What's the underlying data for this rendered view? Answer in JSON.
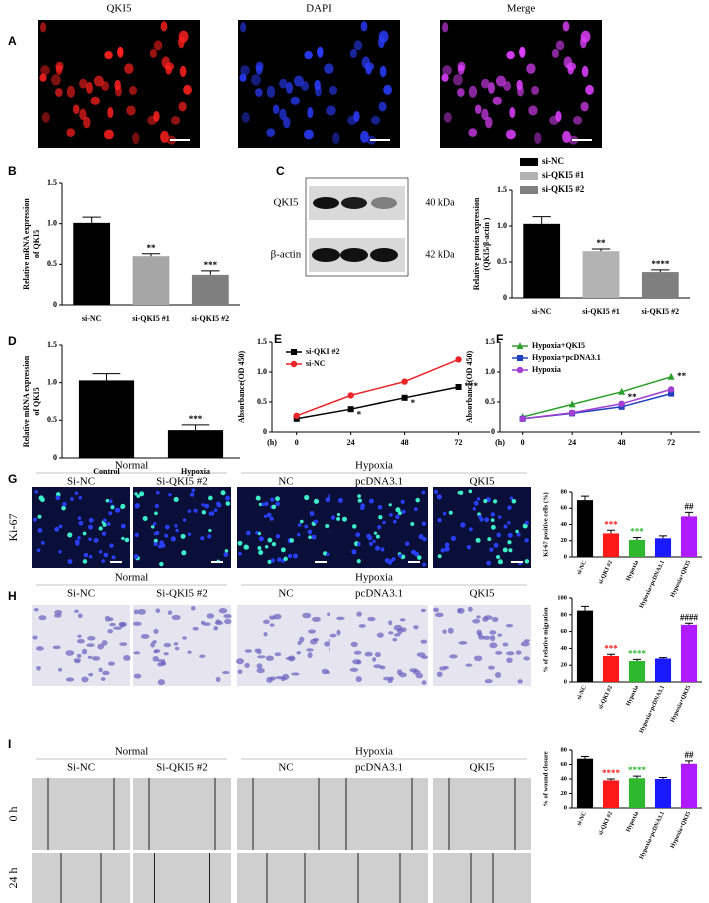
{
  "figure": {
    "panel_labels": [
      "A",
      "B",
      "C",
      "D",
      "E",
      "F",
      "G",
      "H",
      "I"
    ],
    "a_titles": [
      "QKI5",
      "DAPI",
      "Merge"
    ],
    "blot": {
      "bands": [
        "QKI5",
        "β-actin"
      ],
      "sizes": [
        "40 kDa",
        "42 kDa"
      ]
    },
    "g": {
      "groups": [
        "Normal",
        "Hypoxia"
      ],
      "columns": [
        "Si-NC",
        "Si-QKI5 #2",
        "NC",
        "pcDNA3.1",
        "QKI5"
      ],
      "rows": [
        "Ki-67"
      ]
    },
    "h": {
      "groups": [
        "Normal",
        "Hypoxia"
      ],
      "columns": [
        "Si-NC",
        "Si-QKI5 #2",
        "NC",
        "pcDNA3.1",
        "QKI5"
      ]
    },
    "i": {
      "groups": [
        "Normal",
        "Hypoxia"
      ],
      "columns": [
        "Si-NC",
        "Si-QKI5 #2",
        "NC",
        "pcDNA3.1",
        "QKI5"
      ],
      "rows": [
        "0 h",
        "24 h"
      ]
    }
  },
  "chart_data": [
    {
      "type": "bar",
      "ylabel": [
        "Relative mRNA expression",
        "of QKI5"
      ],
      "categories": [
        "si-NC",
        "si-QKI5 #1",
        "si-QKI5 #2"
      ],
      "values": [
        1.01,
        0.6,
        0.37
      ],
      "errors": [
        0.07,
        0.03,
        0.05
      ],
      "annotations": [
        null,
        "**",
        "***"
      ],
      "colors": [
        "#000000",
        "#a6a6a6",
        "#7f7f7f"
      ],
      "ylim": [
        0,
        1.5
      ],
      "yticks": [
        0,
        0.5,
        {
          "value": 1,
          "label": "1.0"
        },
        1.5
      ],
      "legend": false
    },
    {
      "type": "bar",
      "ylabel": [
        "Relative protein expression",
        "(QKI5/β-actin )"
      ],
      "categories": [
        "si-NC",
        "si-QKI5 #1",
        "si-QKI5 #2"
      ],
      "values": [
        1.03,
        0.65,
        0.36
      ],
      "errors": [
        0.1,
        0.03,
        0.03
      ],
      "annotations": [
        null,
        "**",
        "****"
      ],
      "colors": [
        "#000000",
        "#b3b3b3",
        "#7f7f7f"
      ],
      "ylim": [
        0,
        1.5
      ],
      "yticks": [
        0,
        0.5,
        {
          "value": 1,
          "label": "1.0"
        },
        1.5
      ],
      "legend": true
    },
    {
      "type": "bar",
      "ylabel": [
        "Relative mRNA expression",
        "of QKI5"
      ],
      "categories": [
        "Control",
        "Hypoxia"
      ],
      "values": [
        1.03,
        0.37
      ],
      "errors": [
        0.09,
        0.07
      ],
      "annotations": [
        null,
        "***"
      ],
      "colors": [
        "#000000",
        "#000000"
      ],
      "ylim": [
        0,
        1.5
      ],
      "yticks": [
        0,
        0.5,
        {
          "value": 1,
          "label": "1.0"
        },
        1.5
      ],
      "legend": false
    },
    {
      "type": "line",
      "ylabel": [
        "Absorbance(OD 450)"
      ],
      "xlabel": "(h)",
      "x": [
        0,
        24,
        48,
        72
      ],
      "xlim": [
        -11,
        86
      ],
      "xticks": [
        0,
        24,
        48,
        72
      ],
      "ylim": [
        0,
        1.5
      ],
      "yticks": [
        0,
        0.5,
        {
          "value": 1,
          "label": "1.0"
        },
        1.5
      ],
      "legend": true,
      "series": [
        {
          "name": "si-QKI #2",
          "color": "#000000",
          "marker": "square",
          "values": [
            0.22,
            0.38,
            0.57,
            0.75
          ],
          "annotations": [
            null,
            "*",
            "*",
            "***"
          ]
        },
        {
          "name": "si-NC",
          "color": "#e8262a",
          "marker": "circle",
          "values": [
            0.27,
            0.61,
            0.84,
            1.21
          ],
          "annotations": [
            null,
            null,
            null,
            null
          ]
        }
      ]
    },
    {
      "type": "line",
      "ylabel": [
        "Absorbance(OD 450)"
      ],
      "xlabel": "(h)",
      "x": [
        0,
        24,
        48,
        72
      ],
      "xlim": [
        -11,
        86
      ],
      "xticks": [
        0,
        24,
        48,
        72
      ],
      "ylim": [
        0,
        1.5
      ],
      "yticks": [
        0,
        0.5,
        {
          "value": 1,
          "label": "1.0"
        },
        1.5
      ],
      "legend": true,
      "series": [
        {
          "name": "Hypoxia+QKI5",
          "color": "#2ca02c",
          "marker": "triangle",
          "values": [
            0.25,
            0.46,
            0.67,
            0.92
          ],
          "annotations": [
            null,
            null,
            "**",
            "**"
          ]
        },
        {
          "name": "Hypoxia+pcDNA3.1",
          "color": "#1f3fbf",
          "marker": "square",
          "values": [
            0.22,
            0.31,
            0.42,
            0.64
          ],
          "annotations": [
            null,
            null,
            null,
            null
          ]
        },
        {
          "name": "Hypoxia",
          "color": "#a23fd1",
          "marker": "circle",
          "values": [
            0.22,
            0.32,
            0.47,
            0.71
          ],
          "annotations": [
            null,
            null,
            null,
            null
          ]
        }
      ]
    },
    {
      "type": "bar",
      "ylabel": [
        "Ki-67 positive cells (%)"
      ],
      "categories": [
        "si-NC",
        "si-QKI #2",
        "Hypoxia",
        "Hypoxia+pcDNA3.1",
        "Hypoxia+QKI5"
      ],
      "values": [
        70,
        29,
        21,
        23,
        50
      ],
      "errors": [
        5,
        4,
        3,
        3,
        5
      ],
      "annotations": [
        null,
        "***",
        "***",
        null,
        "##"
      ],
      "colors": [
        "#000000",
        "#ff1a1a",
        "#2db82d",
        "#1a1aff",
        "#b01aff"
      ],
      "ylim": [
        0,
        80
      ],
      "yticks": [
        0,
        20,
        40,
        60,
        80
      ],
      "legend": false
    },
    {
      "type": "bar",
      "ylabel": [
        "% of relative migration"
      ],
      "categories": [
        "si-NC",
        "si-QKI #2",
        "Hypoxia",
        "Hypoxia+pcDNA3.1",
        "Hypoxia+QKI5"
      ],
      "values": [
        85,
        31,
        25,
        28,
        68
      ],
      "errors": [
        5,
        2,
        2,
        1,
        2
      ],
      "annotations": [
        null,
        "***",
        "****",
        null,
        "####"
      ],
      "colors": [
        "#000000",
        "#ff1a1a",
        "#2db82d",
        "#1a1aff",
        "#b01aff"
      ],
      "ylim": [
        0,
        100
      ],
      "yticks": [
        0,
        20,
        40,
        60,
        80,
        100
      ],
      "legend": false
    },
    {
      "type": "bar",
      "ylabel": [
        "% of wound closure"
      ],
      "categories": [
        "si-NC",
        "si-QKI #2",
        "Hypoxia",
        "Hypoxia+pcDNA3.1",
        "Hypoxia+QKI5"
      ],
      "values": [
        68,
        38,
        41,
        40,
        61
      ],
      "errors": [
        3,
        2,
        3,
        2,
        4
      ],
      "annotations": [
        null,
        "****",
        "****",
        null,
        "##"
      ],
      "colors": [
        "#000000",
        "#ff1a1a",
        "#2db82d",
        "#1a1aff",
        "#b01aff"
      ],
      "ylim": [
        0,
        80
      ],
      "yticks": [
        0,
        20,
        40,
        60,
        80
      ],
      "legend": false
    }
  ]
}
